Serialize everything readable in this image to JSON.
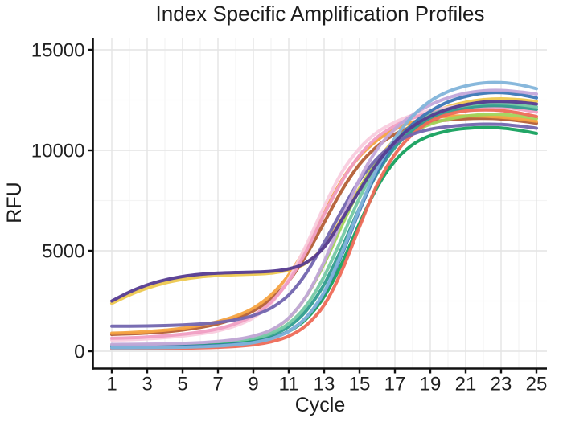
{
  "title": {
    "text": "Index Specific Amplification Profiles"
  },
  "colors": {
    "background": "#ffffff",
    "axis": "#111111",
    "text": "#1c1c1c",
    "grid_major": "#e4e4e4",
    "grid_minor": "#f4f4f4"
  },
  "chart_data": {
    "type": "line",
    "title": "Index Specific Amplification Profiles",
    "xlabel": "Cycle",
    "ylabel": "RFU",
    "x": [
      1,
      2,
      3,
      4,
      5,
      6,
      7,
      8,
      9,
      10,
      11,
      12,
      13,
      14,
      15,
      16,
      17,
      18,
      19,
      20,
      21,
      22,
      23,
      24,
      25
    ],
    "xlim": [
      1,
      25
    ],
    "ylim": [
      0,
      15000
    ],
    "x_major_ticks": [
      1,
      3,
      5,
      7,
      9,
      11,
      13,
      15,
      17,
      19,
      21,
      23,
      25
    ],
    "x_minor_gridlines": [
      2,
      4,
      6,
      8,
      10,
      12,
      14,
      16,
      18,
      20,
      22,
      24
    ],
    "y_major_ticks": [
      0,
      5000,
      10000,
      15000
    ],
    "y_minor_gridlines": [
      2500,
      7500,
      12500
    ],
    "grid": true,
    "legend": false,
    "series": [
      {
        "name": "yellow",
        "color": "#EDC84F",
        "values": [
          2380,
          2800,
          3140,
          3400,
          3580,
          3700,
          3770,
          3810,
          3840,
          3890,
          4040,
          4400,
          5220,
          6620,
          8120,
          9480,
          10540,
          11300,
          11820,
          12170,
          12390,
          12520,
          12560,
          12520,
          12430
        ]
      },
      {
        "name": "sienna",
        "color": "#B45F36",
        "values": [
          840,
          870,
          910,
          970,
          1060,
          1190,
          1370,
          1630,
          2010,
          2600,
          3500,
          4800,
          6400,
          8000,
          9300,
          10200,
          10800,
          11170,
          11390,
          11510,
          11570,
          11590,
          11560,
          11470,
          11350
        ]
      },
      {
        "name": "orange",
        "color": "#F5A341",
        "values": [
          900,
          930,
          980,
          1050,
          1150,
          1290,
          1480,
          1750,
          2150,
          2800,
          3800,
          5200,
          6900,
          8500,
          9700,
          10500,
          11050,
          11400,
          11600,
          11690,
          11710,
          11700,
          11650,
          11560,
          11450
        ]
      },
      {
        "name": "light-pink",
        "color": "#F9CCDE",
        "values": [
          560,
          580,
          620,
          680,
          760,
          870,
          1020,
          1270,
          1670,
          2380,
          3600,
          5300,
          7200,
          8900,
          10100,
          10900,
          11400,
          11750,
          11980,
          12130,
          12230,
          12290,
          12300,
          12220,
          12050
        ]
      },
      {
        "name": "pink",
        "color": "#F09EC3",
        "values": [
          650,
          670,
          710,
          770,
          850,
          960,
          1120,
          1380,
          1780,
          2450,
          3500,
          5000,
          6800,
          8450,
          9750,
          10650,
          11220,
          11600,
          11860,
          12020,
          12110,
          12150,
          12140,
          12050,
          11900
        ]
      },
      {
        "name": "yellow-green",
        "color": "#A2D45A",
        "values": [
          300,
          305,
          315,
          330,
          355,
          395,
          455,
          560,
          740,
          1050,
          1650,
          2750,
          4350,
          6250,
          8050,
          9400,
          10300,
          10900,
          11300,
          11550,
          11700,
          11780,
          11790,
          11710,
          11580
        ]
      },
      {
        "name": "teal",
        "color": "#2F9D8E",
        "values": [
          250,
          255,
          262,
          274,
          292,
          320,
          365,
          440,
          570,
          800,
          1230,
          2030,
          3330,
          5130,
          7130,
          8850,
          10150,
          11000,
          11560,
          11910,
          12110,
          12210,
          12220,
          12150,
          12040
        ]
      },
      {
        "name": "mint",
        "color": "#74C9A4",
        "values": [
          270,
          275,
          282,
          295,
          315,
          345,
          395,
          480,
          630,
          890,
          1380,
          2280,
          3730,
          5630,
          7630,
          9250,
          10450,
          11250,
          11760,
          12060,
          12240,
          12340,
          12350,
          12280,
          12160
        ]
      },
      {
        "name": "sea-green",
        "color": "#16A15E",
        "values": [
          230,
          233,
          238,
          246,
          260,
          282,
          318,
          378,
          480,
          660,
          990,
          1620,
          2720,
          4370,
          6370,
          8170,
          9470,
          10280,
          10730,
          10970,
          11090,
          11130,
          11110,
          11000,
          10840
        ]
      },
      {
        "name": "salmon",
        "color": "#EE6A57",
        "values": [
          130,
          133,
          137,
          143,
          153,
          169,
          196,
          241,
          321,
          471,
          751,
          1300,
          2300,
          4000,
          6200,
          8300,
          9800,
          10800,
          11440,
          11790,
          11960,
          12010,
          11980,
          11860,
          11680
        ]
      },
      {
        "name": "steel-blue",
        "color": "#3C77B6",
        "values": [
          200,
          203,
          208,
          216,
          230,
          252,
          288,
          348,
          450,
          640,
          1000,
          1700,
          2900,
          4800,
          7000,
          8950,
          10350,
          11300,
          11950,
          12400,
          12680,
          12840,
          12870,
          12780,
          12610
        ]
      },
      {
        "name": "slate-purple",
        "color": "#7265AF",
        "values": [
          1250,
          1250,
          1260,
          1280,
          1310,
          1360,
          1440,
          1570,
          1780,
          2150,
          2800,
          3900,
          5400,
          7000,
          8500,
          9600,
          10350,
          10800,
          11050,
          11180,
          11260,
          11300,
          11290,
          11210,
          11100
        ]
      },
      {
        "name": "lilac",
        "color": "#C2A6DA",
        "values": [
          340,
          345,
          355,
          370,
          395,
          430,
          490,
          590,
          760,
          1060,
          1660,
          2760,
          4460,
          6560,
          8560,
          10060,
          11060,
          11760,
          12260,
          12610,
          12840,
          12960,
          12980,
          12910,
          12800
        ]
      },
      {
        "name": "sky-blue",
        "color": "#82B4DA",
        "values": [
          170,
          173,
          178,
          186,
          200,
          223,
          260,
          322,
          430,
          625,
          990,
          1700,
          2950,
          4900,
          7100,
          9100,
          10600,
          11700,
          12450,
          12920,
          13200,
          13350,
          13370,
          13270,
          13070
        ]
      },
      {
        "name": "indigo",
        "color": "#553B91",
        "values": [
          2500,
          2950,
          3300,
          3550,
          3720,
          3830,
          3890,
          3920,
          3940,
          3980,
          4100,
          4420,
          5180,
          6540,
          8000,
          9350,
          10420,
          11180,
          11700,
          12050,
          12270,
          12400,
          12430,
          12390,
          12300
        ]
      }
    ]
  }
}
